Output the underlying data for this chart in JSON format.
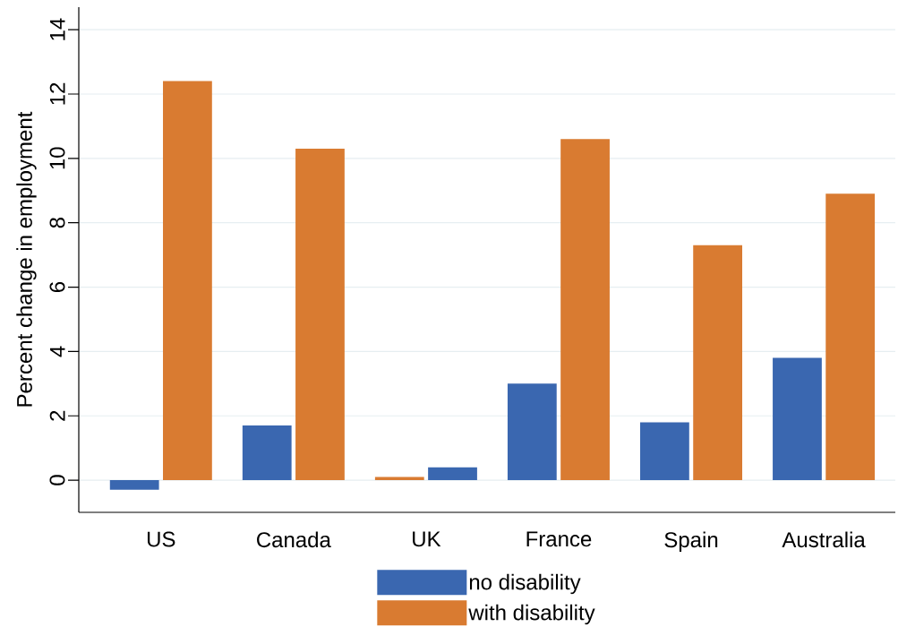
{
  "chart_data": {
    "type": "bar",
    "ylabel": "Percent change in employment",
    "categories": [
      "US",
      "Canada",
      "UK",
      "France",
      "Spain",
      "Australia"
    ],
    "series": [
      {
        "name": "no disability",
        "color": "#3a67b0",
        "colors": [
          "#3a67b0",
          "#3a67b0",
          "#d97b31",
          "#3a67b0",
          "#3a67b0",
          "#3a67b0"
        ],
        "values": [
          -0.3,
          1.7,
          0.1,
          3.0,
          1.8,
          3.8
        ]
      },
      {
        "name": "with disability",
        "color": "#d97b31",
        "colors": [
          "#d97b31",
          "#d97b31",
          "#3a67b0",
          "#d97b31",
          "#d97b31",
          "#d97b31"
        ],
        "values": [
          12.4,
          10.3,
          0.4,
          10.6,
          7.3,
          8.9
        ]
      }
    ],
    "ylim": [
      -1,
      14.7
    ],
    "yticks": [
      0,
      2,
      4,
      6,
      8,
      10,
      12,
      14
    ],
    "grid": "y",
    "legend": "bottom"
  }
}
